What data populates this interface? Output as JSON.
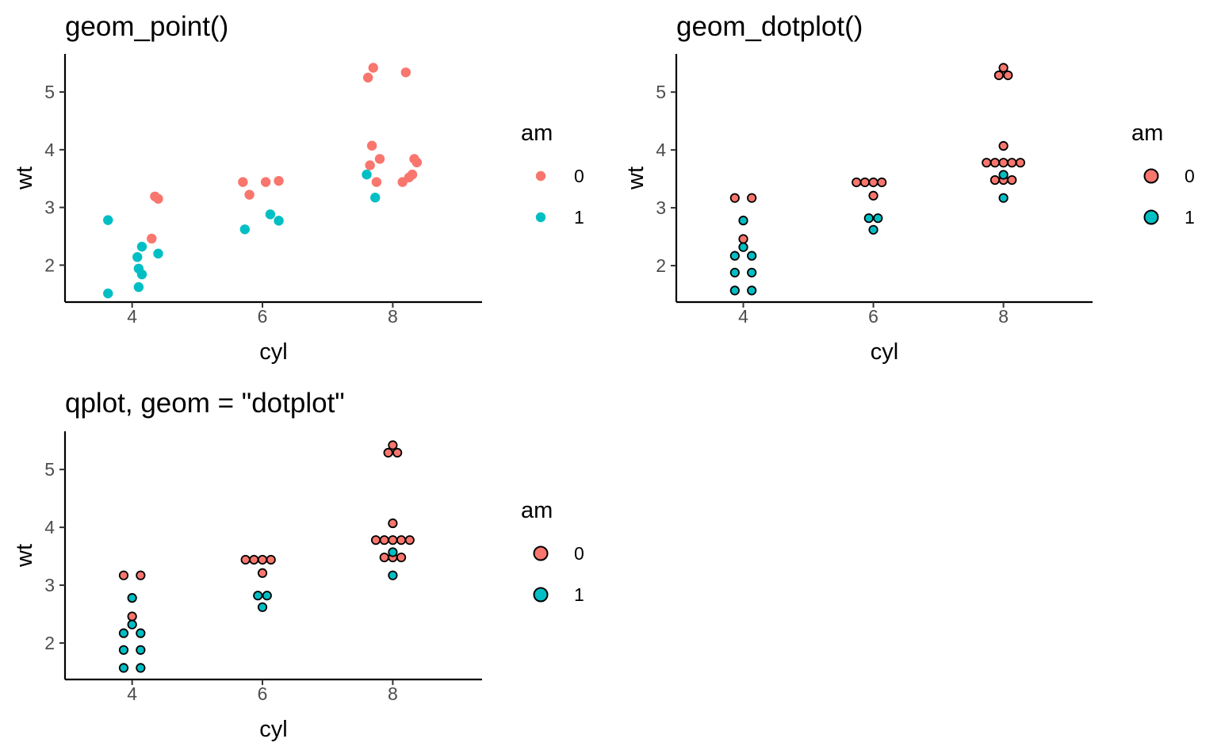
{
  "colors": {
    "am_0": "#F8766D",
    "am_1": "#00BFC4",
    "axis": "#000000",
    "tick_text": "#4D4D4D",
    "dot_outline": "#000000"
  },
  "chart_data": [
    {
      "type": "scatter",
      "title": "geom_point()",
      "xlabel": "cyl",
      "ylabel": "wt",
      "xlim": [
        2.97,
        9.37
      ],
      "ylim": [
        1.36,
        5.66
      ],
      "x_ticks": [
        "4",
        "6",
        "8"
      ],
      "y_ticks": [
        "2",
        "3",
        "4",
        "5"
      ],
      "grid": false,
      "legend": {
        "title": "am",
        "placement": "right",
        "entries": [
          "0",
          "1"
        ],
        "style": "filled"
      },
      "series": [
        {
          "name": "0",
          "color": "#F8766D",
          "points": [
            [
              4.3,
              2.46
            ],
            [
              4.35,
              3.19
            ],
            [
              4.4,
              3.15
            ],
            [
              5.7,
              3.44
            ],
            [
              5.8,
              3.22
            ],
            [
              6.05,
              3.44
            ],
            [
              6.25,
              3.46
            ],
            [
              7.62,
              5.25
            ],
            [
              7.7,
              5.42
            ],
            [
              8.2,
              5.34
            ],
            [
              7.68,
              4.07
            ],
            [
              7.8,
              3.84
            ],
            [
              7.65,
              3.73
            ],
            [
              7.75,
              3.44
            ],
            [
              8.15,
              3.44
            ],
            [
              8.25,
              3.52
            ],
            [
              8.3,
              3.57
            ],
            [
              8.33,
              3.84
            ],
            [
              8.37,
              3.78
            ]
          ]
        },
        {
          "name": "1",
          "color": "#00BFC4",
          "points": [
            [
              3.63,
              2.78
            ],
            [
              4.08,
              2.14
            ],
            [
              4.15,
              2.32
            ],
            [
              4.4,
              2.2
            ],
            [
              4.1,
              1.94
            ],
            [
              4.15,
              1.84
            ],
            [
              4.1,
              1.62
            ],
            [
              3.63,
              1.51
            ],
            [
              5.73,
              2.62
            ],
            [
              6.12,
              2.88
            ],
            [
              6.25,
              2.77
            ],
            [
              7.6,
              3.57
            ],
            [
              7.73,
              3.17
            ]
          ]
        }
      ]
    },
    {
      "type": "scatter",
      "title": "geom_dotplot()",
      "xlabel": "cyl",
      "ylabel": "wt",
      "xlim": [
        2.97,
        9.37
      ],
      "ylim": [
        1.37,
        5.66
      ],
      "x_ticks": [
        "4",
        "6",
        "8"
      ],
      "y_ticks": [
        "2",
        "3",
        "4",
        "5"
      ],
      "grid": false,
      "legend": {
        "title": "am",
        "placement": "right",
        "entries": [
          "0",
          "1"
        ],
        "style": "outlined"
      },
      "series": [
        {
          "name": "0",
          "color": "#F8766D",
          "points": [
            [
              3.87,
              3.17
            ],
            [
              4.13,
              3.17
            ],
            [
              4.0,
              2.46
            ],
            [
              5.74,
              3.44
            ],
            [
              5.87,
              3.44
            ],
            [
              6.0,
              3.44
            ],
            [
              6.13,
              3.44
            ],
            [
              6.0,
              3.21
            ],
            [
              8.0,
              5.42
            ],
            [
              7.93,
              5.29
            ],
            [
              8.07,
              5.29
            ],
            [
              8.0,
              4.07
            ],
            [
              7.74,
              3.78
            ],
            [
              7.87,
              3.78
            ],
            [
              8.0,
              3.78
            ],
            [
              8.13,
              3.78
            ],
            [
              8.26,
              3.78
            ],
            [
              7.87,
              3.48
            ],
            [
              8.0,
              3.48
            ],
            [
              8.13,
              3.48
            ]
          ]
        },
        {
          "name": "1",
          "color": "#00BFC4",
          "points": [
            [
              4.0,
              2.78
            ],
            [
              4.0,
              2.32
            ],
            [
              3.87,
              2.17
            ],
            [
              4.13,
              2.17
            ],
            [
              3.87,
              1.88
            ],
            [
              4.13,
              1.88
            ],
            [
              3.87,
              1.57
            ],
            [
              4.13,
              1.57
            ],
            [
              5.93,
              2.82
            ],
            [
              6.07,
              2.82
            ],
            [
              6.0,
              2.62
            ],
            [
              8.0,
              3.57
            ],
            [
              8.0,
              3.17
            ]
          ]
        }
      ]
    },
    {
      "type": "scatter",
      "title": "qplot, geom = \"dotplot\"",
      "xlabel": "cyl",
      "ylabel": "wt",
      "xlim": [
        2.97,
        9.37
      ],
      "ylim": [
        1.37,
        5.66
      ],
      "x_ticks": [
        "4",
        "6",
        "8"
      ],
      "y_ticks": [
        "2",
        "3",
        "4",
        "5"
      ],
      "grid": false,
      "legend": {
        "title": "am",
        "placement": "right",
        "entries": [
          "0",
          "1"
        ],
        "style": "outlined"
      },
      "series": [
        {
          "name": "0",
          "color": "#F8766D",
          "points": [
            [
              3.87,
              3.17
            ],
            [
              4.13,
              3.17
            ],
            [
              4.0,
              2.46
            ],
            [
              5.74,
              3.44
            ],
            [
              5.87,
              3.44
            ],
            [
              6.0,
              3.44
            ],
            [
              6.13,
              3.44
            ],
            [
              6.0,
              3.21
            ],
            [
              8.0,
              5.42
            ],
            [
              7.93,
              5.29
            ],
            [
              8.07,
              5.29
            ],
            [
              8.0,
              4.07
            ],
            [
              7.74,
              3.78
            ],
            [
              7.87,
              3.78
            ],
            [
              8.0,
              3.78
            ],
            [
              8.13,
              3.78
            ],
            [
              8.26,
              3.78
            ],
            [
              7.87,
              3.48
            ],
            [
              8.0,
              3.48
            ],
            [
              8.13,
              3.48
            ]
          ]
        },
        {
          "name": "1",
          "color": "#00BFC4",
          "points": [
            [
              4.0,
              2.78
            ],
            [
              4.0,
              2.32
            ],
            [
              3.87,
              2.17
            ],
            [
              4.13,
              2.17
            ],
            [
              3.87,
              1.88
            ],
            [
              4.13,
              1.88
            ],
            [
              3.87,
              1.57
            ],
            [
              4.13,
              1.57
            ],
            [
              5.93,
              2.82
            ],
            [
              6.07,
              2.82
            ],
            [
              6.0,
              2.62
            ],
            [
              8.0,
              3.57
            ],
            [
              8.0,
              3.17
            ]
          ]
        }
      ]
    }
  ]
}
